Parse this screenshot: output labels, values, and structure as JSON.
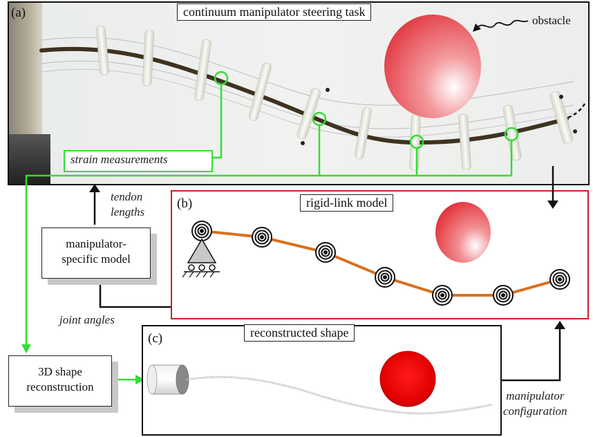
{
  "panel_a": {
    "tag": "(a)",
    "title": "continuum manipulator steering task",
    "obstacle_label": "obstacle",
    "strain_label": "strain measurements"
  },
  "panel_b": {
    "tag": "(b)",
    "title": "rigid-link model"
  },
  "panel_c": {
    "tag": "(c)",
    "title": "reconstructed shape"
  },
  "nodes": {
    "manipulator_model": [
      "manipulator-",
      "specific model"
    ],
    "shape_reconstruction": [
      "3D shape",
      "reconstruction"
    ]
  },
  "edge_labels": {
    "tendon_lengths": [
      "tendon",
      "lengths"
    ],
    "joint_angles": "joint angles",
    "manipulator_configuration": [
      "manipulator",
      "configuration"
    ]
  },
  "colors": {
    "panel_b_border": "#c8202a",
    "sensor_green": "#33dd33",
    "link_orange": "#d9701e",
    "obstacle_red": "#e8262e"
  }
}
